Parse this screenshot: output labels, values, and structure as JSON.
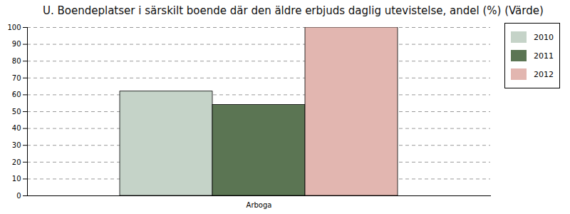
{
  "chart_data": {
    "type": "bar",
    "title": "U. Boendeplatser i särskilt boende där den äldre erbjuds daglig utevistelse, andel (%) (Värde)",
    "categories": [
      "Arboga"
    ],
    "series": [
      {
        "name": "2010",
        "color": "#c5d3c8",
        "values": [
          62
        ]
      },
      {
        "name": "2011",
        "color": "#5b7553",
        "values": [
          54
        ]
      },
      {
        "name": "2012",
        "color": "#e2b6b0",
        "values": [
          100
        ]
      }
    ],
    "ylim": [
      0,
      100
    ],
    "yticks": [
      0,
      10,
      20,
      30,
      40,
      50,
      60,
      70,
      80,
      90,
      100
    ],
    "grid": true,
    "legend": "top-right"
  }
}
